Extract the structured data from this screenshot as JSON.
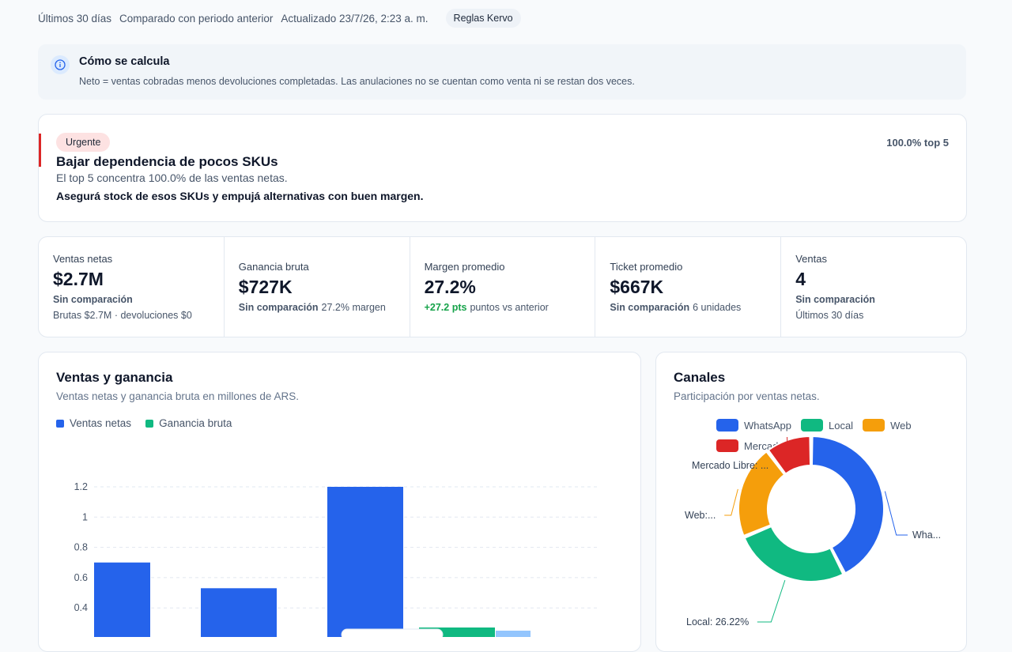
{
  "header": {
    "period": "Últimos 30 días",
    "comparison": "Comparado con periodo anterior",
    "updated": "Actualizado 23/7/26, 2:23 a. m.",
    "rules_badge": "Reglas Kervo"
  },
  "info": {
    "icon": "info-icon",
    "title": "Cómo se calcula",
    "text": "Neto = ventas cobradas menos devoluciones completadas. Las anulaciones no se cuentan como venta ni se restan dos veces."
  },
  "alert": {
    "pill": "Urgente",
    "title": "Bajar dependencia de pocos SKUs",
    "subtitle": "El top 5 concentra 100.0% de las ventas netas.",
    "action": "Asegurá stock de esos SKUs y empujá alternativas con buen margen.",
    "metric": "100.0% top 5",
    "accent_color": "#dc2626"
  },
  "kpis": [
    {
      "label": "Ventas netas",
      "value": "$2.7M",
      "note_strong": "Sin comparación",
      "note_text": "",
      "sub": "Brutas $2.7M · devoluciones $0"
    },
    {
      "label": "Ganancia bruta",
      "value": "$727K",
      "note_strong": "Sin comparación",
      "note_text": "27.2% margen",
      "sub": ""
    },
    {
      "label": "Margen promedio",
      "value": "27.2%",
      "note_strong": "+27.2 pts",
      "note_text": "puntos vs anterior",
      "sub": ""
    },
    {
      "label": "Ticket promedio",
      "value": "$667K",
      "note_strong": "Sin comparación",
      "note_text": "6 unidades",
      "sub": ""
    },
    {
      "label": "Ventas",
      "value": "4",
      "note_strong": "Sin comparación",
      "note_text": "",
      "sub": "Últimos 30 días"
    }
  ],
  "sales_chart": {
    "title": "Ventas y ganancia",
    "subtitle": "Ventas netas y ganancia bruta en millones de ARS.",
    "legend": [
      "Ventas netas",
      "Ganancia bruta"
    ]
  },
  "channels_chart": {
    "title": "Canales",
    "subtitle": "Participación por ventas netas.",
    "legend": [
      "WhatsApp",
      "Local",
      "Web",
      "Mercado Libre"
    ],
    "labels": {
      "whatsapp": "Wha...",
      "local": "Local: 26.22%",
      "web": "Web:...",
      "mercado": "Mercado Libre: ..."
    }
  },
  "chart_data": [
    {
      "type": "bar",
      "title": "Ventas y ganancia",
      "yticks": [
        "0.4",
        "0.6",
        "0.8",
        "1",
        "1.2"
      ],
      "ylim": [
        0,
        1.2
      ],
      "grid": true,
      "series": [
        {
          "name": "Ventas netas",
          "color": "#2563eb",
          "values": [
            0.7,
            0.53,
            1.2
          ]
        },
        {
          "name": "Ganancia bruta",
          "color": "#10b981",
          "values": [
            null,
            null,
            0.27
          ]
        }
      ]
    },
    {
      "type": "pie",
      "title": "Canales",
      "donut": true,
      "slices": [
        {
          "name": "WhatsApp",
          "value": 42.5,
          "color": "#2563eb"
        },
        {
          "name": "Local",
          "value": 26.22,
          "color": "#10b981"
        },
        {
          "name": "Web",
          "value": 21.0,
          "color": "#f59e0b"
        },
        {
          "name": "Mercado Libre",
          "value": 10.28,
          "color": "#dc2626"
        }
      ]
    }
  ]
}
